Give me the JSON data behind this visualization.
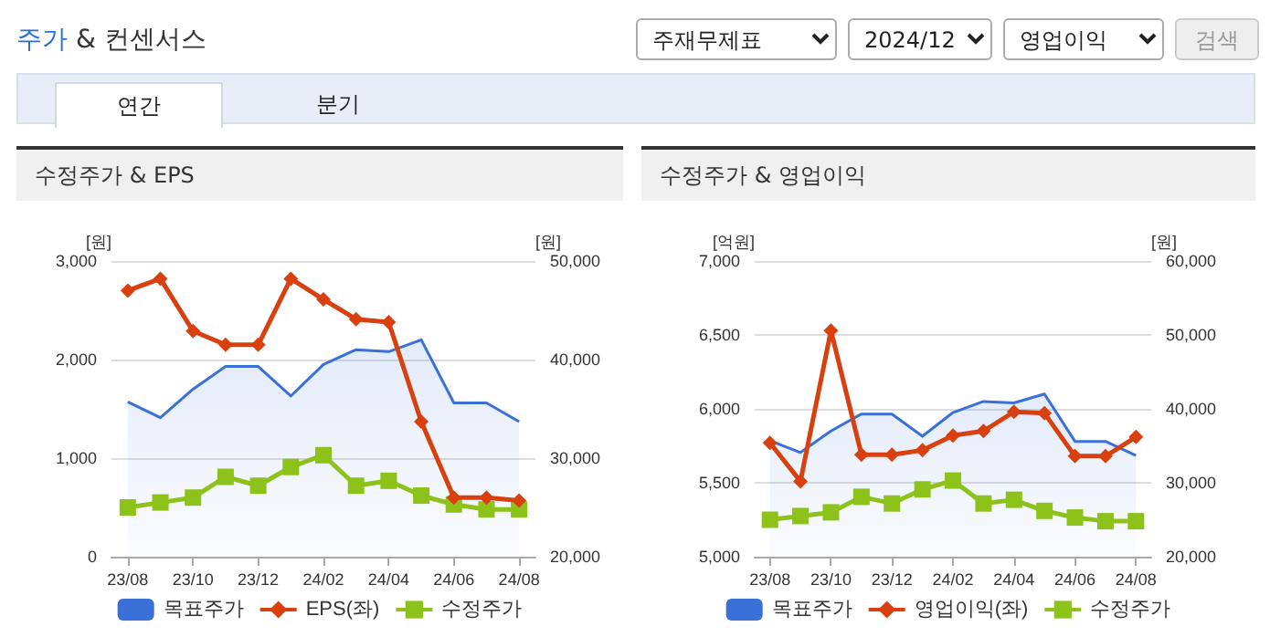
{
  "chart_data": [
    {
      "type": "other",
      "title": "주가 & 컨센서스",
      "annotations": [
        "주재무제표",
        "2024/12",
        "영업이익",
        "검색",
        "연간",
        "분기"
      ]
    },
    {
      "type": "line",
      "title": "수정주가 & EPS",
      "ylabel": "[원]",
      "y2label": "[원]",
      "categories": [
        "23/08",
        null,
        "23/10",
        null,
        "23/12",
        null,
        "24/02",
        null,
        "24/04",
        null,
        "24/06",
        null,
        "24/08"
      ],
      "series": [
        {
          "name": "목표주가",
          "type": "area",
          "axis": "y2",
          "color": "#3a70d8",
          "marker": "none",
          "values": [
            35700,
            34100,
            37000,
            39300,
            39300,
            36300,
            39500,
            41000,
            40800,
            42000,
            35600,
            35600,
            33700
          ]
        },
        {
          "name": "EPS(좌)",
          "type": "line",
          "color": "#d9400f",
          "marker": "diamond",
          "values": [
            2700,
            2820,
            2290,
            2150,
            2150,
            2820,
            2610,
            2410,
            2380,
            1370,
            600,
            600,
            570
          ]
        },
        {
          "name": "수정주가",
          "type": "line",
          "axis": "y2",
          "color": "#8cc21a",
          "marker": "square",
          "values": [
            25000,
            25500,
            26000,
            28100,
            27200,
            29100,
            30300,
            27200,
            27700,
            26200,
            25300,
            24800,
            24800
          ]
        }
      ],
      "ylim": [
        0,
        3000
      ],
      "yticks": [
        0,
        {
          "value": 1000,
          "label": "1,000"
        },
        {
          "value": 2000,
          "label": "2,000"
        },
        {
          "value": 3000,
          "label": "3,000"
        }
      ],
      "y2lim": [
        20000,
        50000
      ],
      "y2ticks": [
        {
          "value": 20000,
          "label": "20,000"
        },
        {
          "value": 30000,
          "label": "30,000"
        },
        {
          "value": 40000,
          "label": "40,000"
        },
        {
          "value": 50000,
          "label": "50,000"
        }
      ],
      "grid": "y",
      "legend": "bottom"
    },
    {
      "type": "line",
      "title": "수정주가 & 영업이익",
      "ylabel": "[억원]",
      "y2label": "[원]",
      "categories": [
        "23/08",
        null,
        "23/10",
        null,
        "23/12",
        null,
        "24/02",
        null,
        "24/04",
        null,
        "24/06",
        null,
        "24/08"
      ],
      "series": [
        {
          "name": "목표주가",
          "type": "area",
          "axis": "y2",
          "color": "#3a70d8",
          "marker": "none",
          "values": [
            35700,
            34100,
            37000,
            39300,
            39300,
            36300,
            39500,
            41000,
            40800,
            42000,
            35600,
            35600,
            33700
          ]
        },
        {
          "name": "영업이익(좌)",
          "type": "line",
          "color": "#d9400f",
          "marker": "diamond",
          "values": [
            5770,
            5510,
            6530,
            5690,
            5690,
            5720,
            5820,
            5850,
            5980,
            5970,
            5680,
            5680,
            5810
          ]
        },
        {
          "name": "수정주가",
          "type": "line",
          "axis": "y2",
          "color": "#8cc21a",
          "marker": "square",
          "values": [
            25000,
            25500,
            26000,
            28100,
            27200,
            29100,
            30300,
            27200,
            27700,
            26200,
            25300,
            24800,
            24800
          ]
        }
      ],
      "ylim": [
        5000,
        7000
      ],
      "yticks": [
        {
          "value": 5000,
          "label": "5,000"
        },
        {
          "value": 5500,
          "label": "5,500"
        },
        {
          "value": 6000,
          "label": "6,000"
        },
        {
          "value": 6500,
          "label": "6,500"
        },
        {
          "value": 7000,
          "label": "7,000"
        }
      ],
      "y2lim": [
        20000,
        60000
      ],
      "y2ticks": [
        {
          "value": 20000,
          "label": "20,000"
        },
        {
          "value": 30000,
          "label": "30,000"
        },
        {
          "value": 40000,
          "label": "40,000"
        },
        {
          "value": 50000,
          "label": "50,000"
        },
        {
          "value": 60000,
          "label": "60,000"
        }
      ],
      "grid": "y",
      "legend": "bottom"
    }
  ]
}
